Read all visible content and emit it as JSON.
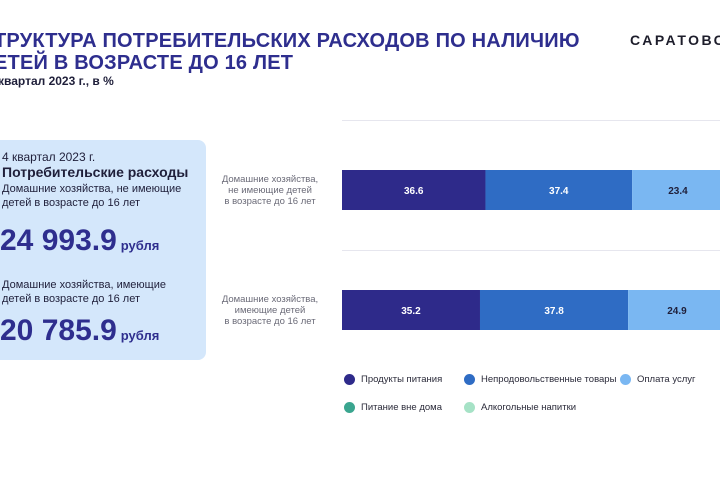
{
  "header": {
    "title_line1": "ТРУКТУРА ПОТРЕБИТЕЛЬСКИХ РАСХОДОВ ПО НАЛИЧИЮ",
    "title_line2": "ЕТЕЙ В ВОЗРАСТЕ ДО 16 ЛЕТ",
    "subtitle": "квартал 2023 г., в %",
    "brand": "САРАТОВС"
  },
  "panel": {
    "period": "4 квартал 2023 г.",
    "heading": "Потребительские расходы",
    "groups": [
      {
        "label": "Домашние хозяйства, не имеющие детей в возрасте до 16 лет",
        "amount": "24 993.9",
        "unit": "рубля"
      },
      {
        "label": "Домашние хозяйства, имеющие детей в возрасте до 16 лет",
        "amount": "20 785.9",
        "unit": "рубля"
      }
    ]
  },
  "chart_data": {
    "type": "bar",
    "orientation": "horizontal",
    "stacked": true,
    "categories": [
      "Домашние хозяйства, не имеющие детей в возрасте до 16 лет",
      "Домашние хозяйства, имеющие детей в возрасте до 16 лет"
    ],
    "category_lines": [
      [
        "Домашние хозяйства,",
        "не имеющие детей",
        "в возрасте до 16 лет"
      ],
      [
        "Домашние хозяйства,",
        "имеющие детей",
        "в возрасте до 16 лет"
      ]
    ],
    "series": [
      {
        "name": "Продукты питания",
        "color": "#2e2a8a",
        "values": [
          36.6,
          35.2
        ]
      },
      {
        "name": "Непродовольственные товары",
        "color": "#2f6cc4",
        "values": [
          37.4,
          37.8
        ]
      },
      {
        "name": "Оплата услуг",
        "color": "#7ab7f2",
        "values": [
          23.4,
          24.9
        ]
      },
      {
        "name": "Питание вне дома",
        "color": "#3aa58f",
        "values": [
          null,
          null
        ]
      },
      {
        "name": "Алкогольные напитки",
        "color": "#a6e2c6",
        "values": [
          null,
          null
        ]
      }
    ],
    "xlim": [
      0,
      100
    ],
    "legend_position": "bottom"
  }
}
